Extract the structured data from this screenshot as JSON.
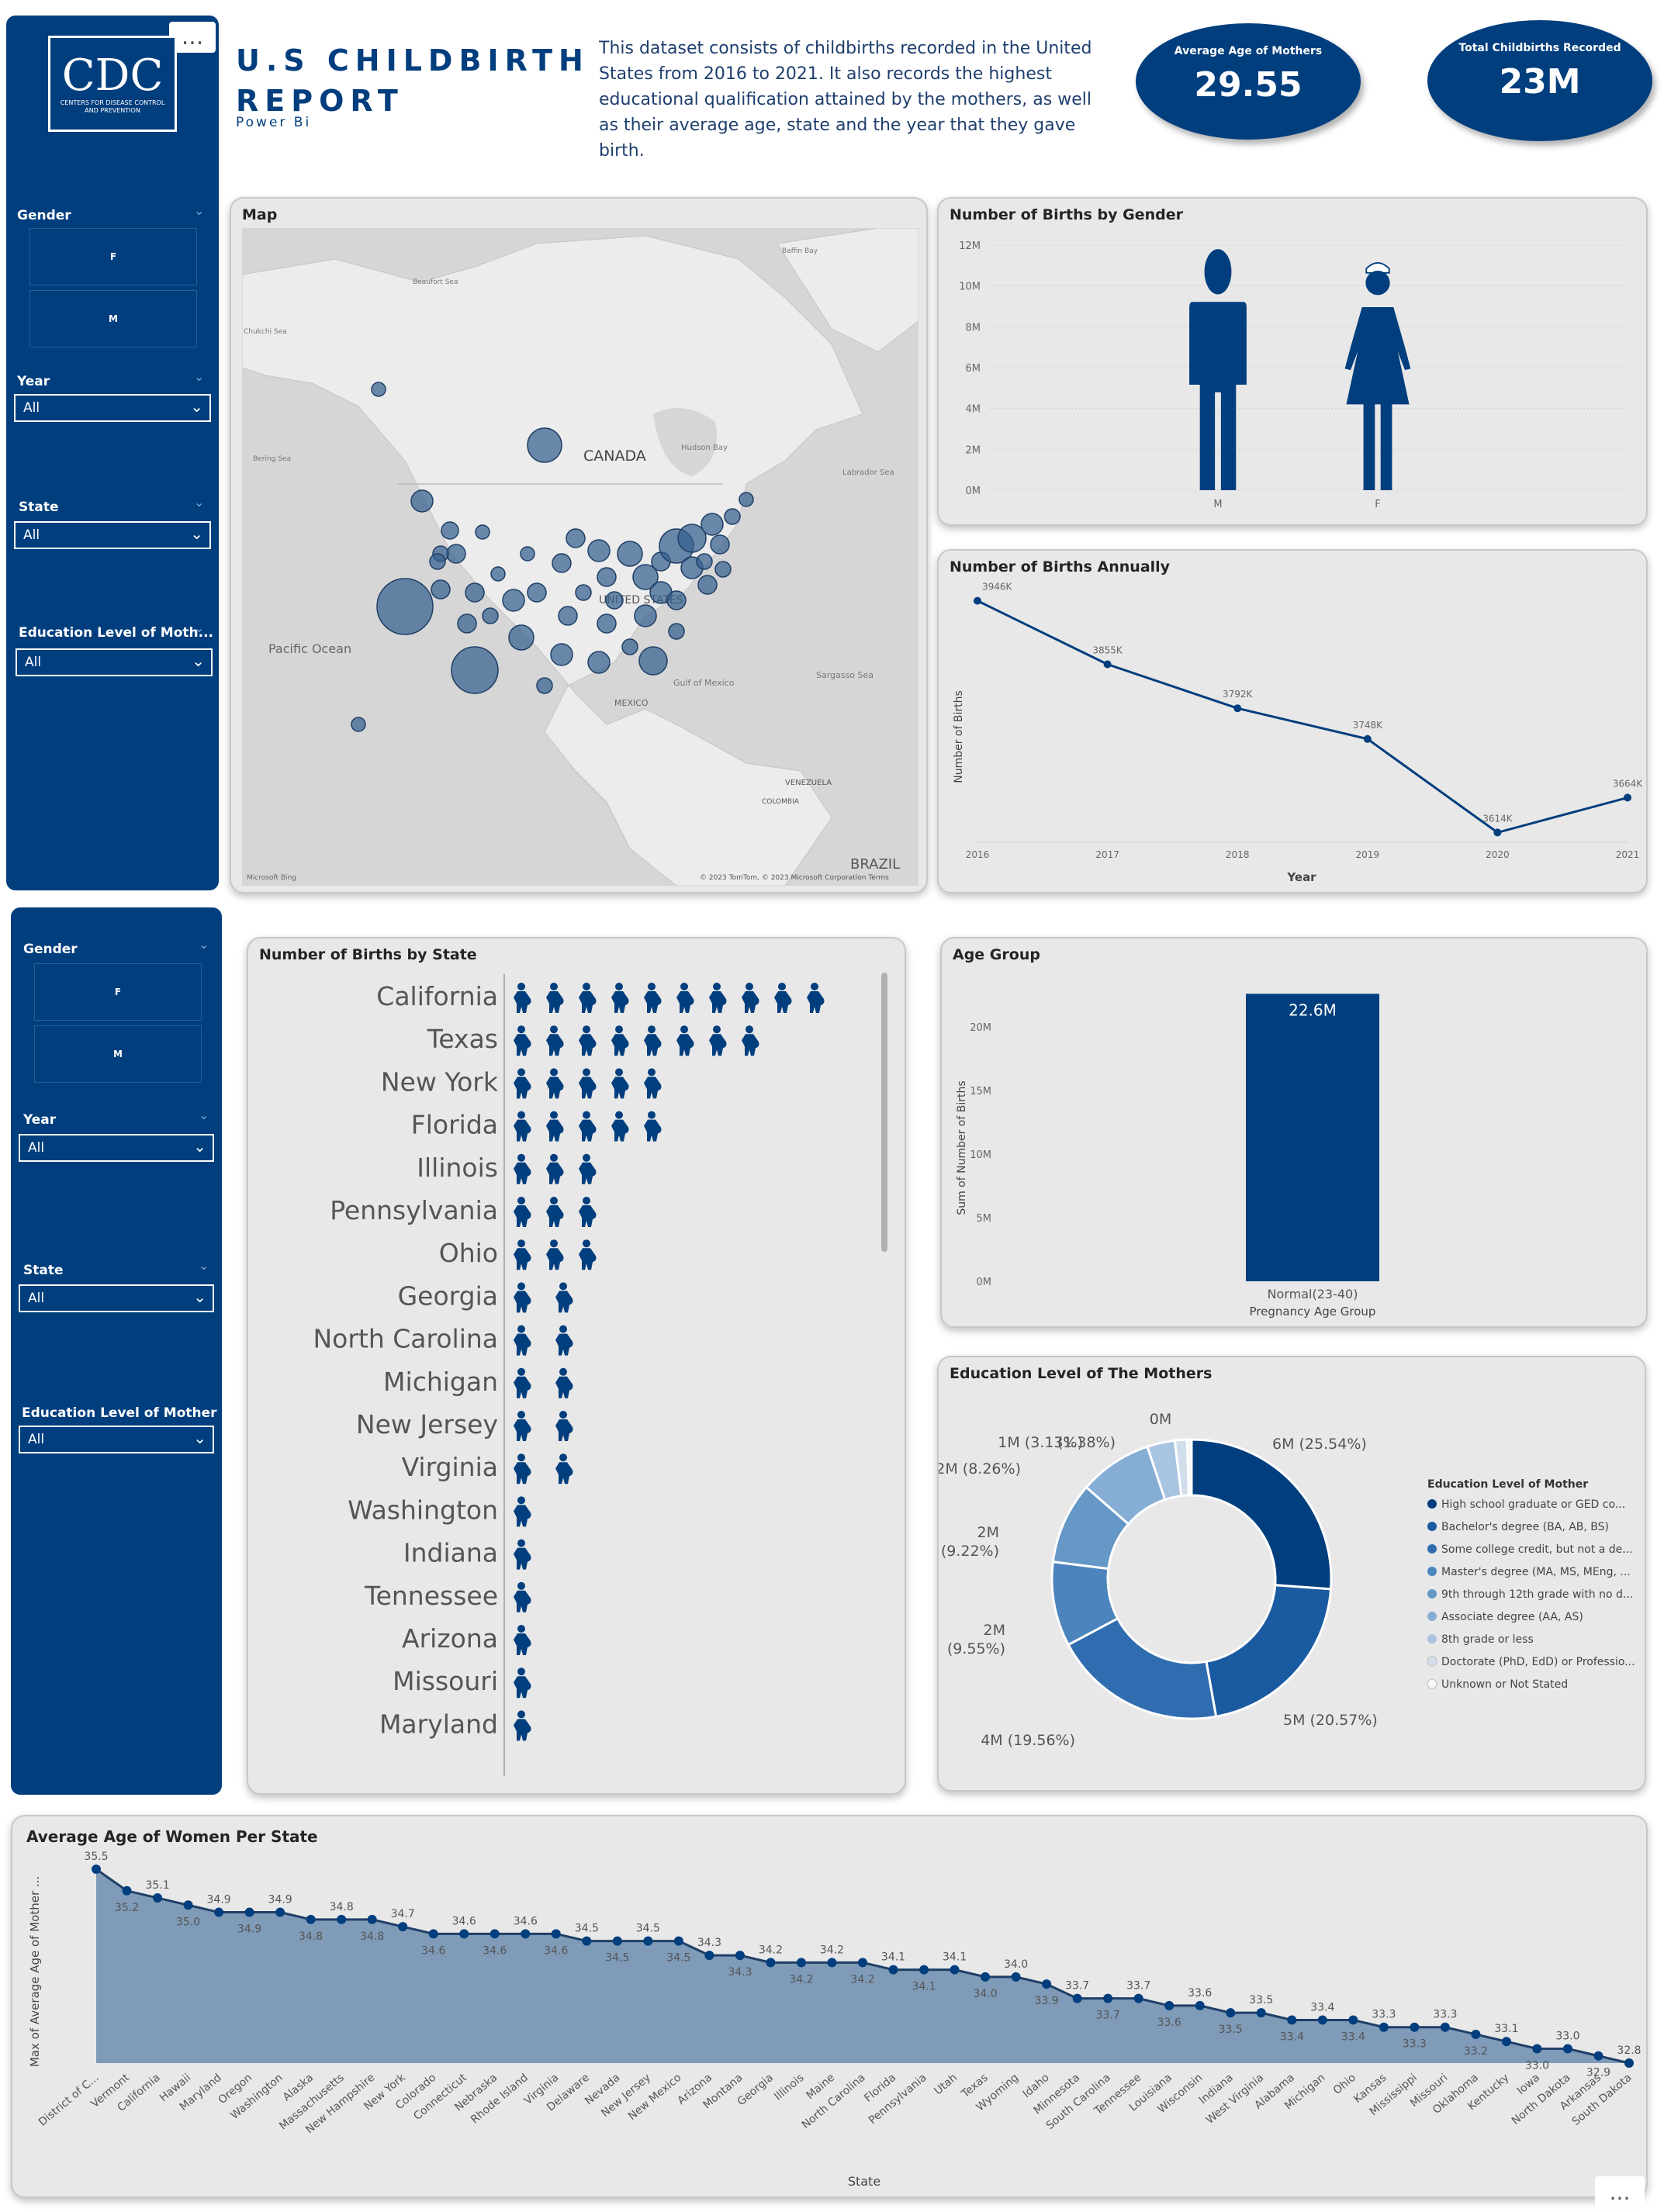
{
  "header": {
    "title_line1": "U.S CHILDBIRTH",
    "title_line2": "REPORT",
    "subtitle": "Power Bi",
    "description": "This dataset consists of childbirths recorded in the United States from 2016 to 2021. It also records the highest educational qualification attained by the mothers, as well as their average age, state and the year that they gave birth.",
    "logo_text": "CDC",
    "logo_subtext": "CENTERS FOR DISEASE CONTROL AND PREVENTION",
    "more_options": "..."
  },
  "kpis": [
    {
      "label": "Average Age of Mothers",
      "value": "29.55"
    },
    {
      "label": "Total Childbirths Recorded",
      "value": "23M"
    }
  ],
  "slicers_top": {
    "gender_label": "Gender",
    "gender_options": [
      "F",
      "M"
    ],
    "year_label": "Year",
    "year_value": "All",
    "state_label": "State",
    "state_value": "All",
    "edu_label": "Education Level of Moth...",
    "edu_value": "All"
  },
  "slicers_bottom": {
    "gender_label": "Gender",
    "gender_options": [
      "F",
      "M"
    ],
    "year_label": "Year",
    "year_value": "All",
    "state_label": "State",
    "state_value": "All",
    "edu_label": "Education Level of Mother",
    "edu_value": "All"
  },
  "map": {
    "title": "Map",
    "labels": {
      "canada": "CANADA",
      "pacific": "Pacific Ocean",
      "mexico": "MEXICO",
      "gulf": "Gulf of Mexico",
      "sargasso": "Sargasso Sea",
      "venezuela": "VENEZUELA",
      "colombia": "COLOMBIA",
      "brazil": "BRAZIL",
      "hudson": "Hudson Bay",
      "labrador": "Labrador Sea",
      "bering": "Bering Sea",
      "beaufort": "Beaufort Sea",
      "baffin": "Baffin Bay",
      "chukchi": "Chukchi Sea",
      "us": "UNITED STATES"
    },
    "attribution": "© 2023 TomTom, © 2023 Microsoft Corporation  Terms",
    "bing": "Microsoft Bing"
  },
  "gender_chart": {
    "title": "Number of Births by Gender",
    "y_ticks": [
      "12M",
      "10M",
      "8M",
      "6M",
      "4M",
      "2M",
      "0M"
    ],
    "categories": [
      "M",
      "F"
    ]
  },
  "annual_chart": {
    "title": "Number of Births Annually",
    "xlabel": "Year",
    "ylabel": "Number of Births"
  },
  "state_chart": {
    "title": "Number of Births by State"
  },
  "age_chart": {
    "title": "Age Group",
    "ylabel": "Sum of Number of Births",
    "xlabel": "Pregnancy Age Group",
    "y_ticks": [
      "20M",
      "15M",
      "10M",
      "5M",
      "0M"
    ]
  },
  "education_chart": {
    "title": "Education Level of The Mothers",
    "legend_title": "Education Level of Mother"
  },
  "avg_age_chart": {
    "title": "Average Age of Women Per State",
    "xlabel": "State",
    "ylabel": "Max of Average Age of Mother ..."
  },
  "chart_data": [
    {
      "type": "bar",
      "title": "Number of Births by Gender",
      "categories": [
        "M",
        "F"
      ],
      "values": [
        11.8,
        11.2
      ],
      "ylim": [
        0,
        12
      ],
      "unit": "M"
    },
    {
      "type": "line",
      "title": "Number of Births Annually",
      "x": [
        2016,
        2017,
        2018,
        2019,
        2020,
        2021
      ],
      "values": [
        3946,
        3855,
        3792,
        3748,
        3614,
        3664
      ],
      "labels": [
        "3946K",
        "3855K",
        "3792K",
        "3748K",
        "3614K",
        "3664K"
      ]
    },
    {
      "type": "bar",
      "title": "Number of Births by State",
      "categories": [
        "California",
        "Texas",
        "New York",
        "Florida",
        "Illinois",
        "Pennsylvania",
        "Ohio",
        "Georgia",
        "North Carolina",
        "Michigan",
        "New Jersey",
        "Virginia",
        "Washington",
        "Indiana",
        "Tennessee",
        "Arizona",
        "Missouri",
        "Maryland"
      ],
      "values": [
        10,
        8,
        5,
        5,
        3,
        3,
        3,
        2,
        2,
        2,
        2,
        2,
        1,
        1,
        1,
        1,
        1,
        1
      ]
    },
    {
      "type": "bar",
      "title": "Age Group",
      "categories": [
        "Normal(23-40)"
      ],
      "values": [
        22.6
      ],
      "labels": [
        "22.6M"
      ],
      "ylim": [
        0,
        22.6
      ]
    },
    {
      "type": "pie",
      "title": "Education Level of The Mothers",
      "series": [
        {
          "name": "High school graduate or GED co...",
          "value": 25.54,
          "label": "6M (25.54%)",
          "color": "#003e7e"
        },
        {
          "name": "Bachelor's degree (BA, AB, BS)",
          "value": 20.57,
          "label": "5M (20.57%)",
          "color": "#1a5aa0"
        },
        {
          "name": "Some college credit, but not a de...",
          "value": 19.56,
          "label": "4M (19.56%)",
          "color": "#2f6db0"
        },
        {
          "name": "Master's degree (MA, MS, MEng, ...",
          "value": 9.55,
          "label": "2M (9.55%)",
          "color": "#4c84bd"
        },
        {
          "name": "9th through 12th grade with no d...",
          "value": 9.22,
          "label": "2M (9.22%)",
          "color": "#6597c7"
        },
        {
          "name": "Associate degree (AA, AS)",
          "value": 8.26,
          "label": "2M (8.26%)",
          "color": "#86add3"
        },
        {
          "name": "8th grade or less",
          "value": 3.13,
          "label": "1M (3.13%)",
          "color": "#a9c4e0"
        },
        {
          "name": "Doctorate (PhD, EdD) or Professio...",
          "value": 1.38,
          "label": "(1.38%)",
          "color": "#d0deec"
        },
        {
          "name": "Unknown or Not Stated",
          "value": 0.5,
          "label": "0M",
          "color": "#f6f6f6"
        }
      ]
    },
    {
      "type": "area",
      "title": "Average Age of Women Per State",
      "categories": [
        "District of C...",
        "Vermont",
        "California",
        "Hawaii",
        "Maryland",
        "Oregon",
        "Washington",
        "Alaska",
        "Massachusetts",
        "New Hampshire",
        "New York",
        "Colorado",
        "Connecticut",
        "Nebraska",
        "Rhode Island",
        "Virginia",
        "Delaware",
        "Nevada",
        "New Jersey",
        "New Mexico",
        "Arizona",
        "Montana",
        "Georgia",
        "Illinois",
        "Maine",
        "North Carolina",
        "Florida",
        "Pennsylvania",
        "Utah",
        "Texas",
        "Wyoming",
        "Idaho",
        "Minnesota",
        "South Carolina",
        "Tennessee",
        "Louisiana",
        "Wisconsin",
        "Indiana",
        "West Virginia",
        "Alabama",
        "Michigan",
        "Ohio",
        "Kansas",
        "Mississippi",
        "Missouri",
        "Oklahoma",
        "Kentucky",
        "Iowa",
        "North Dakota",
        "Arkansas",
        "South Dakota"
      ],
      "values": [
        35.5,
        35.2,
        35.1,
        35.0,
        34.9,
        34.9,
        34.9,
        34.8,
        34.8,
        34.8,
        34.7,
        34.6,
        34.6,
        34.6,
        34.6,
        34.6,
        34.5,
        34.5,
        34.5,
        34.5,
        34.3,
        34.3,
        34.2,
        34.2,
        34.2,
        34.2,
        34.1,
        34.1,
        34.1,
        34.0,
        34.0,
        33.9,
        33.7,
        33.7,
        33.7,
        33.6,
        33.6,
        33.5,
        33.5,
        33.4,
        33.4,
        33.4,
        33.3,
        33.3,
        33.3,
        33.2,
        33.1,
        33.0,
        33.0,
        32.9,
        32.8
      ],
      "labels": [
        "35.5",
        "35.2",
        "35.1",
        "35.0",
        "34.9",
        "34.9",
        "34.9",
        "34.8",
        "34.8",
        "34.8",
        "34.7",
        "34.6",
        "34.6",
        "34.6",
        "34.6",
        "34.6",
        "34.5",
        "34.5",
        "34.5",
        "34.5",
        "34.3",
        "34.3",
        "34.2",
        "34.2",
        "34.2",
        "34.2",
        "34.1",
        "34.1",
        "34.1",
        "34.0",
        "34.0",
        "33.9",
        "33.7",
        "33.7",
        "33.7",
        "33.6",
        "33.6",
        "33.5",
        "33.5",
        "33.4",
        "33.4",
        "33.4",
        "33.3",
        "33.3",
        "33.3",
        "33.2",
        "33.1",
        "33.0",
        "33.0",
        "32.9",
        "32.8"
      ]
    }
  ]
}
